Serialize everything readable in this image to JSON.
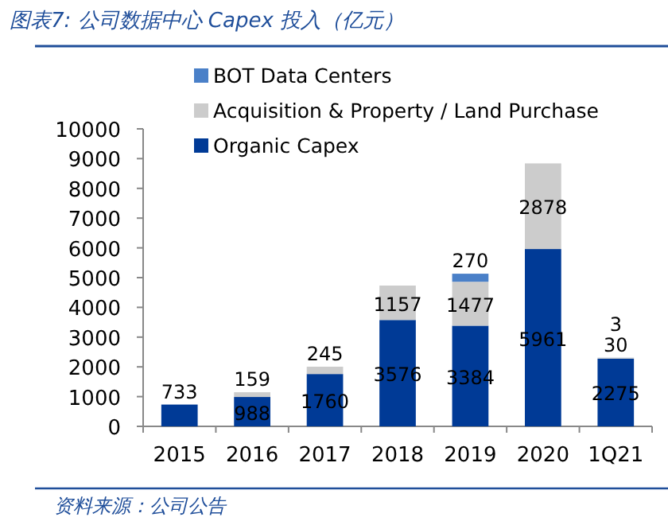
{
  "chart_data": {
    "type": "bar",
    "title": "图表7: 公司数据中心 Capex 投入（亿元）",
    "annotations": [
      "资料来源：公司公告"
    ],
    "categories": [
      "2015",
      "2016",
      "2017",
      "2018",
      "2019",
      "2020",
      "1Q21"
    ],
    "stacked": true,
    "legend": "top left",
    "grid": false,
    "ylim": [
      0,
      10000
    ],
    "yticks": [
      0,
      1000,
      2000,
      3000,
      4000,
      5000,
      6000,
      7000,
      8000,
      9000,
      10000
    ],
    "series": [
      {
        "name": "Organic Capex",
        "color": "#003a96",
        "values": [
          733,
          988,
          1760,
          3576,
          3384,
          5961,
          2275
        ],
        "value_labels": [
          "733",
          "988",
          "1760",
          "3576",
          "3384",
          "5961",
          "2275"
        ]
      },
      {
        "name": "Acquisition & Property / Land Purchase",
        "color": "#cccccc",
        "values": [
          0,
          159,
          245,
          1157,
          1477,
          2878,
          30
        ],
        "value_labels": [
          null,
          "159",
          "245",
          "1157",
          "1477",
          "2878",
          "30"
        ]
      },
      {
        "name": "BOT Data Centers",
        "color": "#4a80c8",
        "values": [
          0,
          0,
          0,
          0,
          270,
          0,
          3
        ],
        "value_labels": [
          null,
          null,
          null,
          null,
          "270",
          null,
          "3"
        ]
      }
    ]
  }
}
